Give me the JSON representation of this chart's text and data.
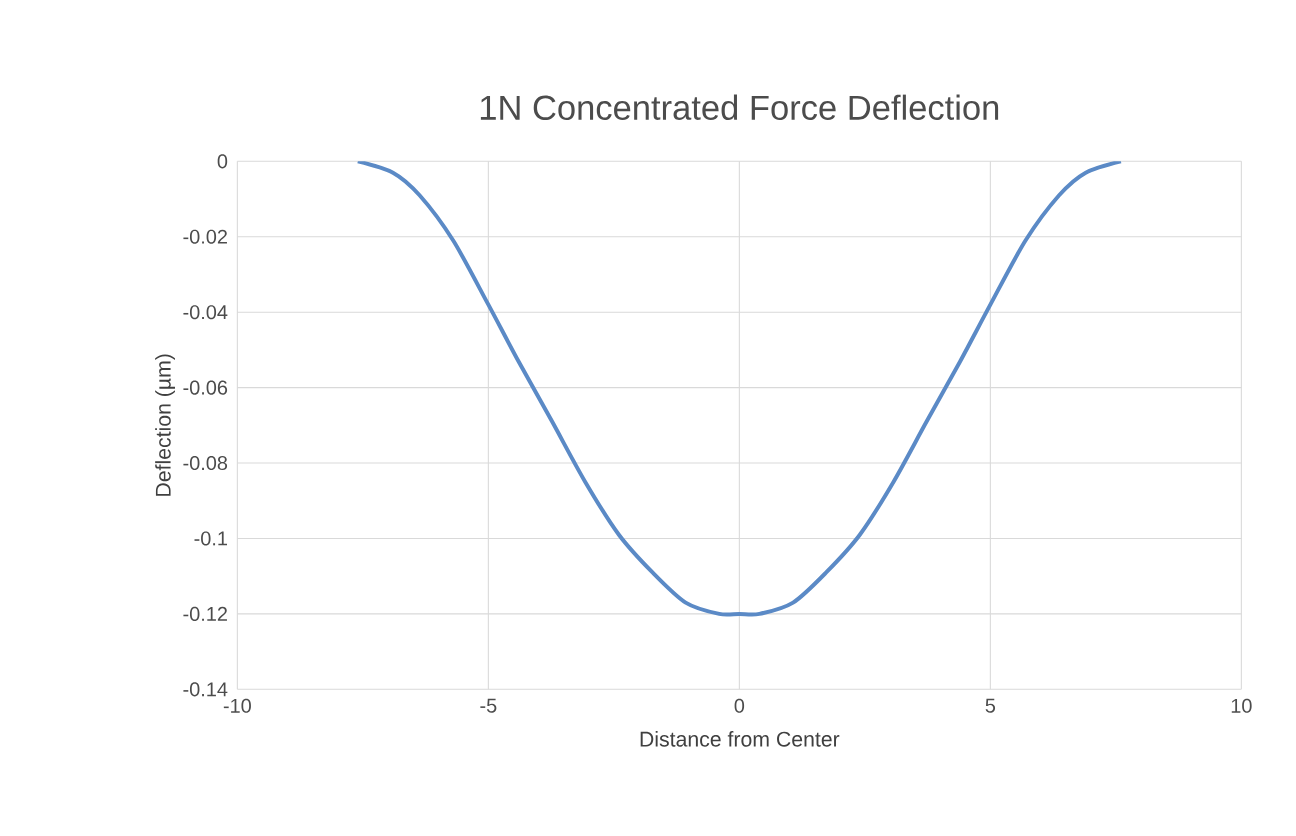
{
  "chart_data": {
    "type": "line",
    "title": "1N Concentrated Force Deflection",
    "xlabel": "Distance from Center",
    "ylabel": "Deflection (µm)",
    "x": [
      -7.6,
      -6.9,
      -6.37,
      -5.7,
      -5,
      -4.4,
      -3.73,
      -3.07,
      -2.4,
      -1.73,
      -1.07,
      -0.4,
      0,
      0.4,
      1.07,
      1.73,
      2.4,
      3.07,
      3.73,
      4.4,
      5,
      5.7,
      6.37,
      6.9,
      7.6
    ],
    "series": [
      {
        "color": "#5b8ac6",
        "values": [
          0,
          -0.003,
          -0.009,
          -0.021,
          -0.038,
          -0.053,
          -0.069,
          -0.085,
          -0.099,
          -0.109,
          -0.117,
          -0.12,
          -0.12,
          -0.12,
          -0.117,
          -0.109,
          -0.099,
          -0.085,
          -0.069,
          -0.053,
          -0.038,
          -0.021,
          -0.009,
          -0.003,
          0
        ]
      }
    ],
    "xlim": [
      -10,
      10
    ],
    "ylim": [
      -0.14,
      0
    ],
    "xticks": [
      -10,
      -5,
      0,
      5,
      10
    ],
    "yticks": [
      -0.14,
      -0.12,
      -0.1,
      -0.08,
      -0.06,
      -0.04,
      -0.02,
      0
    ],
    "grid": true,
    "marker": "none",
    "line_style": "solid"
  }
}
